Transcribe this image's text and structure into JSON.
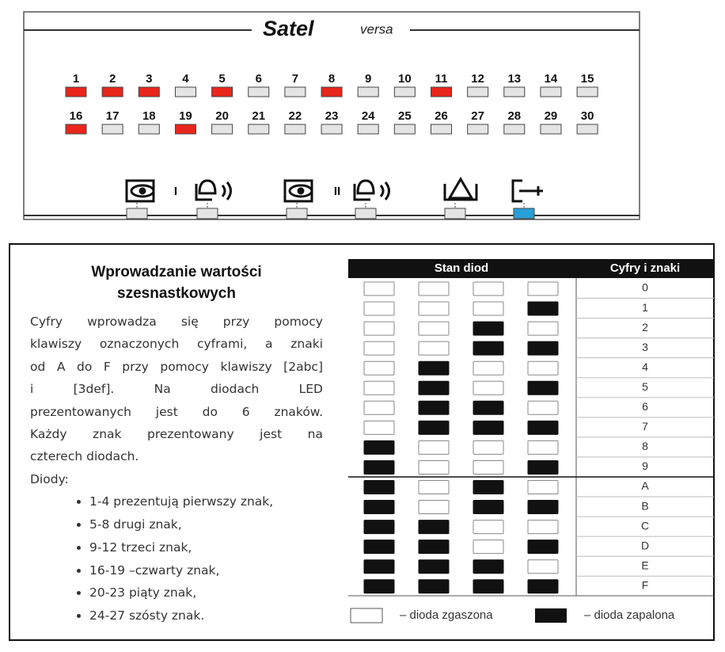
{
  "keypad": {
    "brand": "Satel",
    "model": "versa",
    "leds": [
      {
        "label": "1",
        "lit": true
      },
      {
        "label": "2",
        "lit": true
      },
      {
        "label": "3",
        "lit": true
      },
      {
        "label": "4",
        "lit": false
      },
      {
        "label": "5",
        "lit": true
      },
      {
        "label": "6",
        "lit": false
      },
      {
        "label": "7",
        "lit": false
      },
      {
        "label": "8",
        "lit": true
      },
      {
        "label": "9",
        "lit": false
      },
      {
        "label": "10",
        "lit": false
      },
      {
        "label": "11",
        "lit": true
      },
      {
        "label": "12",
        "lit": false
      },
      {
        "label": "13",
        "lit": false
      },
      {
        "label": "14",
        "lit": false
      },
      {
        "label": "15",
        "lit": false
      },
      {
        "label": "16",
        "lit": true
      },
      {
        "label": "17",
        "lit": false
      },
      {
        "label": "18",
        "lit": false
      },
      {
        "label": "19",
        "lit": true
      },
      {
        "label": "20",
        "lit": false
      },
      {
        "label": "21",
        "lit": false
      },
      {
        "label": "22",
        "lit": false
      },
      {
        "label": "23",
        "lit": false
      },
      {
        "label": "24",
        "lit": false
      },
      {
        "label": "25",
        "lit": false
      },
      {
        "label": "26",
        "lit": false
      },
      {
        "label": "27",
        "lit": false
      },
      {
        "label": "28",
        "lit": false
      },
      {
        "label": "29",
        "lit": false
      },
      {
        "label": "30",
        "lit": false
      }
    ],
    "partition_labels": [
      "I",
      "II"
    ],
    "status_leds": [
      false,
      false,
      false,
      false,
      false,
      true
    ]
  },
  "instructions": {
    "title": [
      "Wprowadzanie  wartości",
      "szesnastkowych"
    ],
    "paragraph": [
      "Cyfry  wprowadza  się  przy  pomocy",
      "klawiszy oznaczonych cyframi, a znaki",
      "od A do F przy pomocy klawiszy [2abc]",
      "i      [3def].      Na      diodach      LED",
      "prezentowanych  jest  do  6  znaków.",
      "Każdy   znak   prezentowany   jest   na",
      "czterech diodach."
    ],
    "list_title": "Diody:",
    "items": [
      "1-4 prezentują pierwszy znak,",
      "5-8 drugi znak,",
      "9-12 trzeci znak,",
      "16-19 –czwarty znak,",
      "20-23 piąty znak,",
      "24-27 szósty znak."
    ]
  },
  "table": {
    "headers": [
      "Stan diod",
      "Cyfry i znaki"
    ],
    "rows": [
      {
        "leds": [
          false,
          false,
          false,
          false
        ],
        "label": "0"
      },
      {
        "leds": [
          false,
          false,
          false,
          true
        ],
        "label": "1"
      },
      {
        "leds": [
          false,
          false,
          true,
          false
        ],
        "label": "2"
      },
      {
        "leds": [
          false,
          false,
          true,
          true
        ],
        "label": "3"
      },
      {
        "leds": [
          false,
          true,
          false,
          false
        ],
        "label": "4"
      },
      {
        "leds": [
          false,
          true,
          false,
          true
        ],
        "label": "5"
      },
      {
        "leds": [
          false,
          true,
          true,
          false
        ],
        "label": "6"
      },
      {
        "leds": [
          false,
          true,
          true,
          true
        ],
        "label": "7"
      },
      {
        "leds": [
          true,
          false,
          false,
          false
        ],
        "label": "8"
      },
      {
        "leds": [
          true,
          false,
          false,
          true
        ],
        "label": "9"
      },
      {
        "leds": [
          true,
          false,
          true,
          false
        ],
        "label": "A"
      },
      {
        "leds": [
          true,
          false,
          true,
          true
        ],
        "label": "B"
      },
      {
        "leds": [
          true,
          true,
          false,
          false
        ],
        "label": "C"
      },
      {
        "leds": [
          true,
          true,
          false,
          true
        ],
        "label": "D"
      },
      {
        "leds": [
          true,
          true,
          true,
          false
        ],
        "label": "E"
      },
      {
        "leds": [
          true,
          true,
          true,
          true
        ],
        "label": "F"
      }
    ],
    "legend": [
      "– dioda zgaszona",
      "– dioda zapalona"
    ]
  }
}
